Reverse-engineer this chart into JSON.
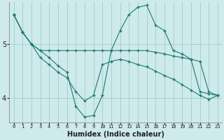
{
  "xlabel": "Humidex (Indice chaleur)",
  "background_color": "#ceeaea",
  "grid_color": "#9ecece",
  "line_color": "#1e7a70",
  "xlim": [
    -0.5,
    23.5
  ],
  "ylim": [
    3.55,
    5.78
  ],
  "yticks": [
    4,
    5
  ],
  "xticks": [
    0,
    1,
    2,
    3,
    4,
    5,
    6,
    7,
    8,
    9,
    10,
    11,
    12,
    13,
    14,
    15,
    16,
    17,
    18,
    19,
    20,
    21,
    22,
    23
  ],
  "line1_x": [
    0,
    1,
    2,
    3,
    4,
    5,
    6,
    7,
    8,
    9,
    10,
    11,
    12,
    13,
    14,
    15,
    16,
    17,
    18,
    19,
    20,
    21,
    22,
    23
  ],
  "line1_y": [
    5.55,
    5.22,
    5.0,
    4.88,
    4.88,
    4.88,
    4.88,
    4.88,
    4.88,
    4.88,
    4.88,
    4.88,
    4.88,
    4.88,
    4.88,
    4.88,
    4.85,
    4.82,
    4.78,
    4.75,
    4.72,
    4.68,
    4.12,
    4.05
  ],
  "line2_x": [
    0,
    1,
    2,
    3,
    4,
    5,
    6,
    7,
    8,
    9,
    10,
    11,
    12,
    13,
    14,
    15,
    16,
    17,
    18,
    19,
    20,
    21,
    22,
    23
  ],
  "line2_y": [
    5.55,
    5.22,
    5.0,
    4.88,
    4.75,
    4.6,
    4.48,
    3.85,
    3.65,
    3.68,
    4.05,
    4.88,
    5.25,
    5.55,
    5.68,
    5.72,
    5.35,
    5.25,
    4.88,
    4.82,
    4.72,
    4.12,
    4.08,
    4.05
  ],
  "line3_x": [
    0,
    1,
    2,
    3,
    4,
    5,
    6,
    7,
    8,
    9,
    10,
    11,
    12,
    13,
    14,
    15,
    16,
    17,
    18,
    19,
    20,
    21,
    22,
    23
  ],
  "line3_y": [
    5.55,
    5.22,
    5.0,
    4.75,
    4.62,
    4.48,
    4.38,
    4.12,
    3.95,
    4.05,
    4.62,
    4.68,
    4.72,
    4.68,
    4.62,
    4.58,
    4.5,
    4.42,
    4.35,
    4.25,
    4.15,
    4.05,
    3.98,
    4.05
  ]
}
